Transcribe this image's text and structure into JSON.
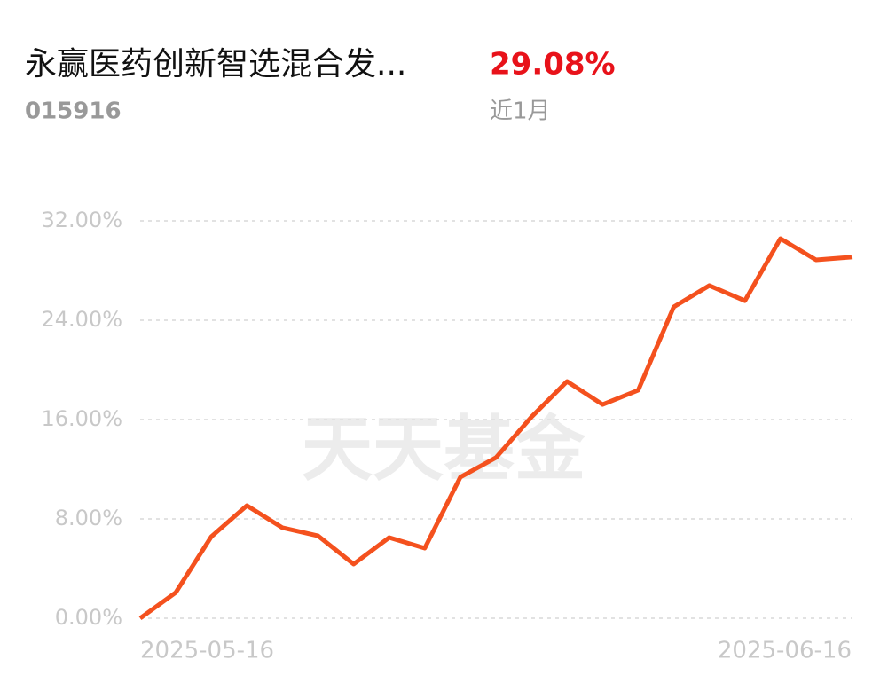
{
  "header": {
    "title": "永赢医药创新智选混合发...",
    "code": "015916",
    "return": "29.08%",
    "period": "近1月"
  },
  "chart_data": {
    "type": "line",
    "watermark": "天天基金",
    "categories": [
      "2025-05-16",
      null,
      null,
      null,
      null,
      null,
      null,
      null,
      null,
      null,
      null,
      null,
      null,
      null,
      null,
      null,
      null,
      null,
      null,
      null,
      "2025-06-16"
    ],
    "series": [
      {
        "color": "#f4511e",
        "values": [
          0,
          2.07,
          6.57,
          9.07,
          7.29,
          6.64,
          4.36,
          6.5,
          5.64,
          11.36,
          12.93,
          16.21,
          19.07,
          17.21,
          18.36,
          25.07,
          26.79,
          25.57,
          30.57,
          28.86,
          29.08
        ]
      }
    ],
    "ylim": [
      0,
      32
    ],
    "yticks": [
      {
        "value": 0,
        "label": "0.00%"
      },
      {
        "value": 8,
        "label": "8.00%"
      },
      {
        "value": 16,
        "label": "16.00%"
      },
      {
        "value": 24,
        "label": "24.00%"
      },
      {
        "value": 32,
        "label": "32.00%"
      }
    ],
    "grid": true
  }
}
